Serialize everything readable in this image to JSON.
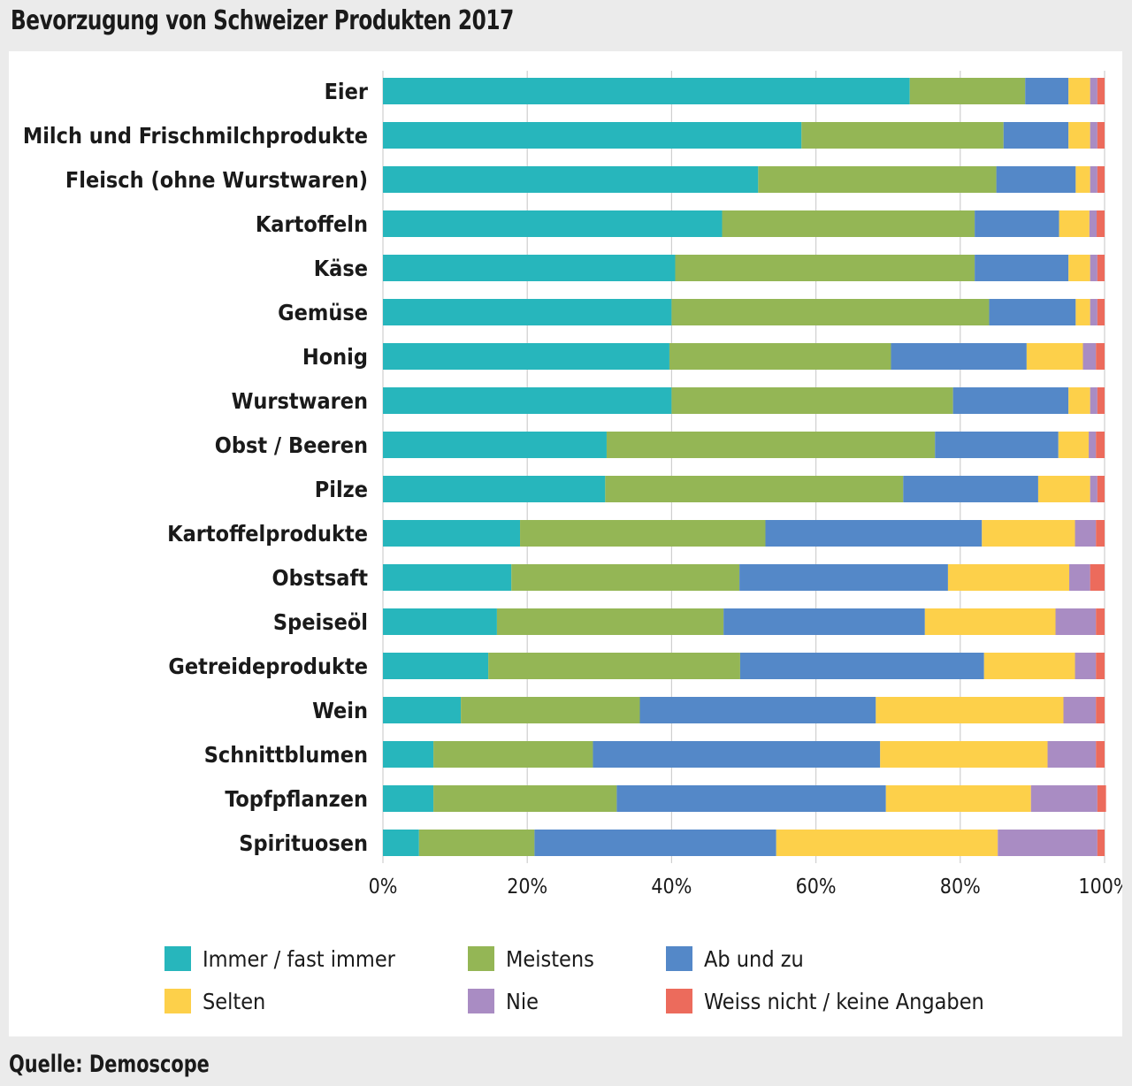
{
  "title": "Bevorzugung von Schweizer Produkten 2017",
  "source": "Quelle: Demoscope",
  "chart_data": {
    "type": "bar",
    "orientation": "horizontal",
    "stacked": true,
    "title": "Bevorzugung von Schweizer Produkten 2017",
    "xlabel": "",
    "ylabel": "",
    "xlim": [
      0,
      100
    ],
    "x_ticks": [
      "0%",
      "20%",
      "40%",
      "60%",
      "80%",
      "100%"
    ],
    "grid": true,
    "legend_position": "bottom",
    "categories": [
      "Eier",
      "Milch und Frischmilchprodukte",
      "Fleisch (ohne Wurstwaren)",
      "Kartoffeln",
      "Käse",
      "Gemüse",
      "Honig",
      "Wurstwaren",
      "Obst / Beeren",
      "Pilze",
      "Kartoffelprodukte",
      "Obstsaft",
      "Speiseöl",
      "Getreideprodukte",
      "Wein",
      "Schnittblumen",
      "Topfpflanzen",
      "Spirituosen"
    ],
    "series": [
      {
        "name": "Immer / fast immer",
        "color": "#27b6bc",
        "values": [
          73,
          58,
          52,
          47,
          40.5,
          40,
          39.7,
          40,
          31,
          30.8,
          19,
          17.8,
          15.8,
          14.6,
          10.8,
          7,
          7,
          5
        ]
      },
      {
        "name": "Meistens",
        "color": "#94b655",
        "values": [
          16,
          28,
          33,
          35,
          41.5,
          44,
          30.7,
          39,
          45.5,
          41.3,
          34,
          31.6,
          31.4,
          34.9,
          24.8,
          22.1,
          25.4,
          16
        ]
      },
      {
        "name": "Ab und zu",
        "color": "#5488c8",
        "values": [
          6,
          9,
          11,
          11.7,
          13,
          12,
          18.8,
          16,
          17.1,
          18.7,
          30,
          28.9,
          27.9,
          33.8,
          32.7,
          39.8,
          37.3,
          33.5
        ]
      },
      {
        "name": "Selten",
        "color": "#fdd04a",
        "values": [
          3,
          3,
          2,
          4.2,
          3,
          2,
          7.8,
          3,
          4.2,
          7.2,
          12.9,
          16.8,
          18.1,
          12.6,
          26,
          23.2,
          20.1,
          30.7
        ]
      },
      {
        "name": "Nie",
        "color": "#a98cc3",
        "values": [
          1,
          1,
          1,
          1,
          1,
          1,
          1.8,
          1,
          1,
          1,
          2.9,
          2.9,
          5.6,
          2.9,
          4.5,
          6.7,
          9.2,
          13.8
        ]
      },
      {
        "name": "Weiss nicht / keine Angaben",
        "color": "#ec6b5c",
        "values": [
          1,
          1,
          1,
          1.1,
          1,
          1,
          1.2,
          1,
          1.2,
          1,
          1.2,
          2,
          1.2,
          1.2,
          1.2,
          1.2,
          1.2,
          1
        ]
      }
    ]
  }
}
